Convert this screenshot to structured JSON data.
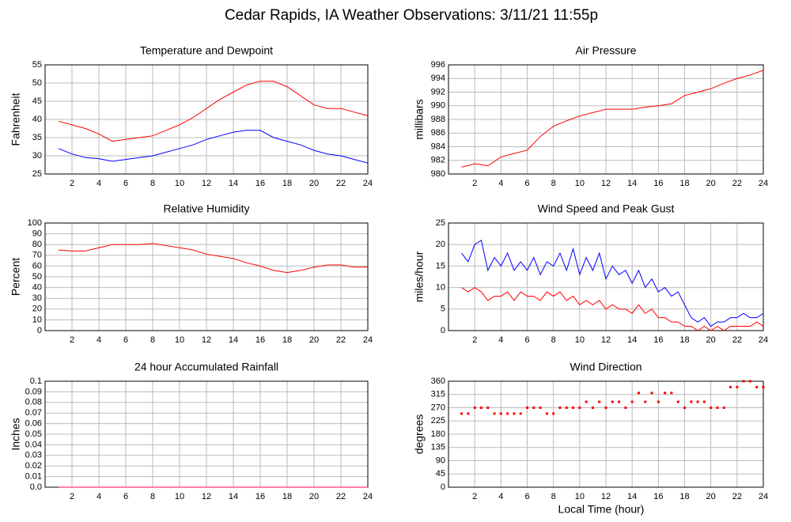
{
  "title": "Cedar Rapids, IA Weather Observations: 3/11/21 11:55p",
  "x_axis_label": "Local Time (hour)",
  "chart_data": [
    {
      "type": "line",
      "title": "Temperature and Dewpoint",
      "ylabel": "Fahrenheit",
      "xlim": [
        0,
        24
      ],
      "xticks": [
        2,
        4,
        6,
        8,
        10,
        12,
        14,
        16,
        18,
        20,
        22,
        24
      ],
      "ylim": [
        25,
        55
      ],
      "yticks": [
        25,
        30,
        35,
        40,
        45,
        50,
        55
      ],
      "grid": true,
      "x": [
        1,
        2,
        3,
        4,
        5,
        6,
        7,
        8,
        9,
        10,
        11,
        12,
        13,
        14,
        15,
        16,
        17,
        18,
        19,
        20,
        21,
        22,
        23,
        24
      ],
      "series": [
        {
          "color": "#ff0000",
          "values": [
            39.5,
            38.5,
            37.5,
            36,
            34,
            34.5,
            35,
            35.5,
            37,
            38.5,
            40.5,
            43,
            45.5,
            47.5,
            49.5,
            50.5,
            50.5,
            49,
            46.5,
            44,
            43,
            43,
            42,
            41
          ]
        },
        {
          "color": "#0000ff",
          "values": [
            32,
            30.5,
            29.5,
            29.2,
            28.5,
            29,
            29.5,
            30,
            31,
            32,
            33,
            34.5,
            35.5,
            36.5,
            37,
            37,
            35,
            34,
            33,
            31.5,
            30.5,
            30,
            29,
            28
          ]
        }
      ]
    },
    {
      "type": "line",
      "title": "Air Pressure",
      "ylabel": "millibars",
      "xlim": [
        0,
        24
      ],
      "xticks": [
        2,
        4,
        6,
        8,
        10,
        12,
        14,
        16,
        18,
        20,
        22,
        24
      ],
      "ylim": [
        980,
        996
      ],
      "yticks": [
        980,
        982,
        984,
        986,
        988,
        990,
        992,
        994,
        996
      ],
      "grid": true,
      "x": [
        1,
        2,
        3,
        4,
        5,
        6,
        7,
        8,
        9,
        10,
        11,
        12,
        13,
        14,
        15,
        16,
        17,
        18,
        19,
        20,
        21,
        22,
        23,
        24
      ],
      "series": [
        {
          "color": "#ff0000",
          "values": [
            981,
            981.5,
            981.2,
            982.5,
            983,
            983.5,
            985.5,
            987,
            987.8,
            988.5,
            989,
            989.5,
            989.5,
            989.5,
            989.8,
            990,
            990.3,
            991.5,
            992,
            992.5,
            993.3,
            994,
            994.5,
            995.2
          ]
        }
      ]
    },
    {
      "type": "line",
      "title": "Relative Humidity",
      "ylabel": "Percent",
      "xlim": [
        0,
        24
      ],
      "xticks": [
        2,
        4,
        6,
        8,
        10,
        12,
        14,
        16,
        18,
        20,
        22,
        24
      ],
      "ylim": [
        0,
        100
      ],
      "yticks": [
        0,
        10,
        20,
        30,
        40,
        50,
        60,
        70,
        80,
        90,
        100
      ],
      "grid": true,
      "x": [
        1,
        2,
        3,
        4,
        5,
        6,
        7,
        8,
        9,
        10,
        11,
        12,
        13,
        14,
        15,
        16,
        17,
        18,
        19,
        20,
        21,
        22,
        23,
        24
      ],
      "series": [
        {
          "color": "#ff0000",
          "values": [
            75,
            74,
            74,
            77,
            80,
            80,
            80,
            81,
            79,
            77,
            75,
            71,
            69,
            67,
            63,
            60,
            56,
            54,
            56,
            59,
            61,
            61,
            59,
            59
          ]
        }
      ]
    },
    {
      "type": "line",
      "title": "Wind Speed and Peak Gust",
      "ylabel": "miles/hour",
      "xlim": [
        0,
        24
      ],
      "xticks": [
        2,
        4,
        6,
        8,
        10,
        12,
        14,
        16,
        18,
        20,
        22,
        24
      ],
      "ylim": [
        0,
        25
      ],
      "yticks": [
        0,
        5,
        10,
        15,
        20,
        25
      ],
      "grid": true,
      "x": [
        1,
        1.5,
        2,
        2.5,
        3,
        3.5,
        4,
        4.5,
        5,
        5.5,
        6,
        6.5,
        7,
        7.5,
        8,
        8.5,
        9,
        9.5,
        10,
        10.5,
        11,
        11.5,
        12,
        12.5,
        13,
        13.5,
        14,
        14.5,
        15,
        15.5,
        16,
        16.5,
        17,
        17.5,
        18,
        18.5,
        19,
        19.5,
        20,
        20.5,
        21,
        21.5,
        22,
        22.5,
        23,
        23.5,
        24
      ],
      "series": [
        {
          "color": "#0000ff",
          "values": [
            18,
            16,
            20,
            21,
            14,
            17,
            15,
            18,
            14,
            16,
            14,
            17,
            13,
            16,
            15,
            18,
            14,
            19,
            13,
            17,
            14,
            18,
            12,
            15,
            13,
            14,
            11,
            14,
            10,
            12,
            9,
            10,
            8,
            9,
            6,
            3,
            2,
            3,
            1,
            2,
            2,
            3,
            3,
            4,
            3,
            3,
            4
          ]
        },
        {
          "color": "#ff0000",
          "values": [
            10,
            9,
            10,
            9,
            7,
            8,
            8,
            9,
            7,
            9,
            8,
            8,
            7,
            9,
            8,
            9,
            7,
            8,
            6,
            7,
            6,
            7,
            5,
            6,
            5,
            5,
            4,
            6,
            4,
            5,
            3,
            3,
            2,
            2,
            1,
            1,
            0,
            1,
            0,
            1,
            0,
            1,
            1,
            1,
            1,
            2,
            1
          ]
        }
      ]
    },
    {
      "type": "line",
      "title": "24 hour Accumulated Rainfall",
      "ylabel": "Inches",
      "xlim": [
        0,
        24
      ],
      "xticks": [
        2,
        4,
        6,
        8,
        10,
        12,
        14,
        16,
        18,
        20,
        22,
        24
      ],
      "ylim": [
        0,
        0.1
      ],
      "yticks": [
        {
          "value": 0,
          "label": "0.0"
        },
        0.01,
        0.02,
        0.03,
        0.04,
        0.05,
        0.06,
        0.07,
        0.08,
        0.09,
        0.1
      ],
      "grid": true,
      "x": [
        1,
        24
      ],
      "series": [
        {
          "color": "#ff0066",
          "values": [
            0,
            0
          ]
        }
      ]
    },
    {
      "type": "scatter",
      "title": "Wind Direction",
      "ylabel": "degrees",
      "xlim": [
        0,
        24
      ],
      "xticks": [
        2,
        4,
        6,
        8,
        10,
        12,
        14,
        16,
        18,
        20,
        22,
        24
      ],
      "ylim": [
        0,
        360
      ],
      "yticks": [
        0,
        45,
        90,
        135,
        180,
        225,
        270,
        315,
        360
      ],
      "grid": true,
      "x": [
        1,
        1.5,
        2,
        2.5,
        3,
        3.5,
        4,
        4.5,
        5,
        5.5,
        6,
        6.5,
        7,
        7.5,
        8,
        8.5,
        9,
        9.5,
        10,
        10.5,
        11,
        11.5,
        12,
        12.5,
        13,
        13.5,
        14,
        14.5,
        15,
        15.5,
        16,
        16.5,
        17,
        17.5,
        18,
        18.5,
        19,
        19.5,
        20,
        20.5,
        21,
        21.5,
        22,
        22.5,
        23,
        23.5,
        24
      ],
      "series": [
        {
          "color": "#ff0000",
          "values": [
            250,
            250,
            270,
            270,
            270,
            250,
            250,
            250,
            250,
            250,
            270,
            270,
            270,
            250,
            250,
            270,
            270,
            270,
            270,
            290,
            270,
            290,
            270,
            290,
            290,
            270,
            290,
            320,
            290,
            320,
            290,
            320,
            320,
            290,
            270,
            290,
            290,
            290,
            270,
            270,
            270,
            340,
            340,
            360,
            360,
            340,
            340
          ]
        }
      ]
    }
  ]
}
